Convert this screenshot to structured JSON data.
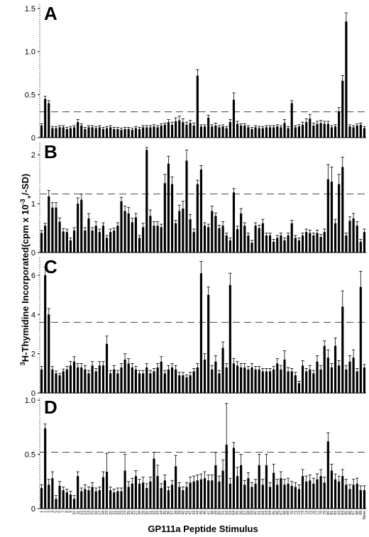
{
  "chart_data": [
    {
      "type": "bar",
      "panel_label": "A",
      "threshold": 0.3,
      "ylim": [
        0,
        1.55
      ],
      "yticks": [
        "0",
        "0.5",
        "1.0",
        "1.5"
      ],
      "ytick_values": [
        0,
        0.5,
        1.0,
        1.5
      ],
      "values": [
        0.14,
        0.45,
        0.4,
        0.11,
        0.11,
        0.12,
        0.12,
        0.1,
        0.11,
        0.12,
        0.18,
        0.14,
        0.1,
        0.12,
        0.12,
        0.11,
        0.12,
        0.1,
        0.11,
        0.12,
        0.1,
        0.1,
        0.09,
        0.1,
        0.1,
        0.09,
        0.11,
        0.1,
        0.12,
        0.12,
        0.12,
        0.13,
        0.12,
        0.14,
        0.15,
        0.18,
        0.15,
        0.19,
        0.2,
        0.18,
        0.15,
        0.17,
        0.14,
        0.72,
        0.13,
        0.13,
        0.23,
        0.13,
        0.14,
        0.12,
        0.13,
        0.11,
        0.18,
        0.44,
        0.16,
        0.14,
        0.14,
        0.12,
        0.1,
        0.12,
        0.11,
        0.11,
        0.12,
        0.12,
        0.12,
        0.13,
        0.12,
        0.17,
        0.11,
        0.4,
        0.12,
        0.13,
        0.15,
        0.18,
        0.22,
        0.14,
        0.16,
        0.17,
        0.16,
        0.16,
        0.12,
        0.13,
        0.3,
        0.66,
        1.35,
        0.13,
        0.12,
        0.14,
        0.15,
        0.11
      ],
      "errors": [
        0.02,
        0.03,
        0.03,
        0.02,
        0.02,
        0.02,
        0.02,
        0.02,
        0.02,
        0.02,
        0.03,
        0.02,
        0.02,
        0.02,
        0.02,
        0.02,
        0.02,
        0.02,
        0.02,
        0.02,
        0.02,
        0.02,
        0.02,
        0.02,
        0.02,
        0.02,
        0.02,
        0.02,
        0.02,
        0.02,
        0.02,
        0.02,
        0.02,
        0.02,
        0.02,
        0.03,
        0.03,
        0.04,
        0.05,
        0.04,
        0.03,
        0.03,
        0.03,
        0.07,
        0.02,
        0.02,
        0.03,
        0.02,
        0.03,
        0.02,
        0.02,
        0.02,
        0.03,
        0.08,
        0.03,
        0.02,
        0.02,
        0.02,
        0.02,
        0.02,
        0.02,
        0.02,
        0.02,
        0.02,
        0.02,
        0.02,
        0.02,
        0.04,
        0.02,
        0.03,
        0.02,
        0.02,
        0.03,
        0.04,
        0.05,
        0.03,
        0.03,
        0.03,
        0.03,
        0.03,
        0.02,
        0.02,
        0.05,
        0.06,
        0.1,
        0.02,
        0.02,
        0.02,
        0.02,
        0.02
      ]
    },
    {
      "type": "bar",
      "panel_label": "B",
      "threshold": 1.2,
      "ylim": [
        0,
        2.25
      ],
      "yticks": [
        "0",
        "1",
        "2"
      ],
      "ytick_values": [
        0,
        1,
        2
      ],
      "values": [
        0.4,
        0.55,
        1.15,
        0.92,
        0.92,
        0.63,
        0.43,
        0.42,
        0.25,
        0.45,
        1.0,
        1.08,
        0.45,
        0.7,
        0.45,
        0.55,
        0.42,
        0.55,
        0.3,
        0.42,
        0.45,
        0.55,
        1.05,
        0.85,
        0.8,
        0.62,
        0.72,
        0.3,
        0.52,
        2.1,
        0.75,
        0.55,
        0.55,
        0.52,
        1.42,
        1.82,
        1.4,
        0.6,
        0.85,
        0.9,
        1.88,
        0.68,
        0.42,
        1.4,
        1.7,
        0.55,
        0.52,
        0.85,
        0.75,
        0.5,
        0.55,
        0.35,
        0.25,
        1.23,
        0.48,
        0.8,
        0.55,
        0.35,
        0.2,
        0.55,
        0.5,
        0.6,
        0.35,
        0.35,
        0.22,
        0.3,
        0.35,
        0.25,
        0.35,
        0.6,
        0.3,
        0.25,
        0.35,
        0.42,
        0.4,
        0.35,
        0.4,
        0.32,
        0.42,
        1.5,
        1.45,
        0.6,
        1.4,
        1.75,
        0.35,
        0.65,
        0.7,
        0.55,
        0.22,
        0.42
      ],
      "errors": [
        0.05,
        0.05,
        0.12,
        0.1,
        0.1,
        0.08,
        0.06,
        0.06,
        0.05,
        0.06,
        0.12,
        0.12,
        0.06,
        0.1,
        0.06,
        0.08,
        0.06,
        0.06,
        0.05,
        0.06,
        0.05,
        0.06,
        0.08,
        0.1,
        0.12,
        0.08,
        0.08,
        0.05,
        0.08,
        0.05,
        0.12,
        0.08,
        0.08,
        0.06,
        0.18,
        0.15,
        0.15,
        0.06,
        0.12,
        0.15,
        0.22,
        0.1,
        0.06,
        0.08,
        0.08,
        0.06,
        0.06,
        0.1,
        0.06,
        0.06,
        0.08,
        0.05,
        0.05,
        0.08,
        0.06,
        0.1,
        0.06,
        0.05,
        0.05,
        0.06,
        0.06,
        0.08,
        0.05,
        0.05,
        0.05,
        0.05,
        0.05,
        0.05,
        0.05,
        0.06,
        0.05,
        0.05,
        0.05,
        0.06,
        0.06,
        0.05,
        0.06,
        0.05,
        0.06,
        0.3,
        0.3,
        0.08,
        0.2,
        0.2,
        0.05,
        0.08,
        0.1,
        0.08,
        0.05,
        0.06
      ]
    },
    {
      "type": "bar",
      "panel_label": "C",
      "threshold": 3.6,
      "ylim": [
        0,
        6.9
      ],
      "yticks": [
        "0",
        "2",
        "4",
        "6"
      ],
      "ytick_values": [
        0,
        2,
        4,
        6
      ],
      "values": [
        1.2,
        6.0,
        4.0,
        1.2,
        1.0,
        0.9,
        1.1,
        1.2,
        1.4,
        1.6,
        1.3,
        1.3,
        1.2,
        1.0,
        1.4,
        1.1,
        1.4,
        1.4,
        2.5,
        1.0,
        1.2,
        1.0,
        1.3,
        1.7,
        1.5,
        1.3,
        1.2,
        1.0,
        1.0,
        1.3,
        1.0,
        1.1,
        1.3,
        1.6,
        1.0,
        1.2,
        1.3,
        1.2,
        0.9,
        0.9,
        0.8,
        0.9,
        1.1,
        1.3,
        6.1,
        1.7,
        5.0,
        1.2,
        1.6,
        1.0,
        2.3,
        1.3,
        5.5,
        1.5,
        1.4,
        1.3,
        1.3,
        1.2,
        1.3,
        1.2,
        1.2,
        1.1,
        1.1,
        1.1,
        1.2,
        1.5,
        1.2,
        1.7,
        1.1,
        1.1,
        0.9,
        0.5,
        1.4,
        1.1,
        1.2,
        1.0,
        1.6,
        1.2,
        2.4,
        1.8,
        1.3,
        2.4,
        1.4,
        4.4,
        1.2,
        1.6,
        1.8,
        1.1,
        5.4,
        1.3
      ],
      "errors": [
        0.15,
        0.4,
        0.3,
        0.15,
        0.12,
        0.1,
        0.12,
        0.15,
        0.2,
        0.25,
        0.2,
        0.2,
        0.2,
        0.15,
        0.2,
        0.15,
        0.2,
        0.2,
        0.4,
        0.15,
        0.2,
        0.15,
        0.2,
        0.3,
        0.25,
        0.2,
        0.15,
        0.15,
        0.15,
        0.2,
        0.15,
        0.15,
        0.2,
        0.25,
        0.15,
        0.2,
        0.2,
        0.2,
        0.15,
        0.15,
        0.12,
        0.15,
        0.15,
        0.2,
        0.6,
        0.3,
        0.4,
        0.2,
        0.3,
        0.15,
        0.3,
        0.2,
        0.6,
        0.25,
        0.2,
        0.2,
        0.2,
        0.15,
        0.2,
        0.15,
        0.15,
        0.15,
        0.15,
        0.15,
        0.15,
        0.25,
        0.2,
        0.45,
        0.2,
        0.15,
        0.15,
        0.1,
        0.25,
        0.15,
        0.2,
        0.15,
        0.3,
        0.2,
        0.25,
        0.4,
        0.2,
        0.4,
        0.25,
        0.8,
        0.2,
        0.3,
        0.4,
        0.15,
        0.8,
        0.15
      ]
    },
    {
      "type": "bar",
      "panel_label": "D",
      "threshold": 0.52,
      "ylim": [
        0,
        1.02
      ],
      "yticks": [
        "0",
        "0.5",
        "1.0"
      ],
      "ytick_values": [
        0,
        0.5,
        1.0
      ],
      "values": [
        0.19,
        0.74,
        0.22,
        0.28,
        0.09,
        0.21,
        0.17,
        0.15,
        0.13,
        0.09,
        0.3,
        0.16,
        0.18,
        0.17,
        0.2,
        0.16,
        0.17,
        0.29,
        0.34,
        0.17,
        0.15,
        0.16,
        0.16,
        0.35,
        0.2,
        0.23,
        0.3,
        0.23,
        0.24,
        0.19,
        0.25,
        0.46,
        0.3,
        0.19,
        0.26,
        0.17,
        0.22,
        0.39,
        0.2,
        0.17,
        0.2,
        0.24,
        0.25,
        0.26,
        0.27,
        0.28,
        0.26,
        0.26,
        0.4,
        0.25,
        0.35,
        0.59,
        0.23,
        0.56,
        0.3,
        0.4,
        0.22,
        0.28,
        0.2,
        0.23,
        0.4,
        0.22,
        0.4,
        0.2,
        0.33,
        0.22,
        0.28,
        0.22,
        0.23,
        0.21,
        0.2,
        0.18,
        0.3,
        0.25,
        0.26,
        0.23,
        0.27,
        0.3,
        0.24,
        0.62,
        0.35,
        0.27,
        0.25,
        0.3,
        0.22,
        0.18,
        0.22,
        0.23,
        0.17,
        0.17
      ],
      "errors": [
        0.03,
        0.04,
        0.05,
        0.06,
        0.03,
        0.04,
        0.03,
        0.03,
        0.03,
        0.03,
        0.04,
        0.03,
        0.04,
        0.03,
        0.04,
        0.03,
        0.03,
        0.05,
        0.17,
        0.03,
        0.03,
        0.03,
        0.03,
        0.15,
        0.05,
        0.05,
        0.05,
        0.04,
        0.05,
        0.04,
        0.04,
        0.06,
        0.1,
        0.04,
        0.05,
        0.03,
        0.04,
        0.1,
        0.04,
        0.03,
        0.04,
        0.05,
        0.05,
        0.05,
        0.05,
        0.06,
        0.05,
        0.05,
        0.12,
        0.05,
        0.1,
        0.38,
        0.05,
        0.05,
        0.08,
        0.1,
        0.04,
        0.05,
        0.04,
        0.04,
        0.1,
        0.05,
        0.1,
        0.04,
        0.08,
        0.05,
        0.06,
        0.05,
        0.05,
        0.04,
        0.04,
        0.04,
        0.06,
        0.05,
        0.05,
        0.05,
        0.05,
        0.06,
        0.05,
        0.08,
        0.06,
        0.05,
        0.05,
        0.06,
        0.05,
        0.04,
        0.05,
        0.05,
        0.04,
        0.04
      ]
    }
  ],
  "axes": {
    "ylabel": "3H-Thymidine Incorporated(cpm x 10-3+/-SD)",
    "ylabel_sup_3": "3",
    "ylabel_main": "H-Thymidine Incorporated(cpm x 10",
    "ylabel_sup_exp": "-3",
    "ylabel_tail_sub": "+",
    "ylabel_tail": "/-SD)",
    "xlabel": "GP111a Peptide Stimulus",
    "x_categories": [
      "1",
      "2",
      "3",
      "4",
      "5",
      "6",
      "7",
      "8",
      "9",
      "10",
      "11",
      "12",
      "13",
      "14",
      "15",
      "16",
      "17",
      "18",
      "19",
      "20",
      "21",
      "22",
      "23",
      "24",
      "25",
      "26",
      "27",
      "28",
      "29",
      "30",
      "31",
      "32",
      "33",
      "34",
      "35",
      "36",
      "37",
      "38",
      "39",
      "40",
      "41",
      "42",
      "43",
      "44",
      "45",
      "46",
      "47",
      "48",
      "49",
      "50",
      "51",
      "52",
      "53",
      "54",
      "55",
      "56",
      "57",
      "58",
      "59",
      "60",
      "61",
      "62",
      "63",
      "64",
      "65",
      "66",
      "67",
      "68",
      "69",
      "70",
      "71",
      "72",
      "73",
      "74",
      "75",
      "76",
      "77",
      "78",
      "79",
      "80",
      "81",
      "82",
      "83",
      "84",
      "85",
      "86",
      "87",
      "88",
      "89",
      "None"
    ]
  }
}
